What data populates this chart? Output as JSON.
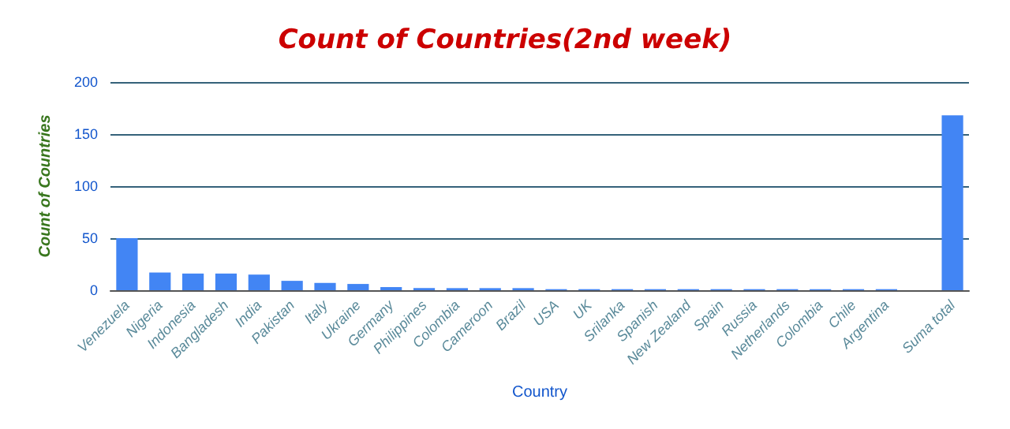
{
  "chart_data": {
    "type": "bar",
    "title": "Count of Countries(2nd week)",
    "xlabel": "Country",
    "ylabel": "Count of Countries",
    "categories": [
      "Venezuela",
      "Nigeria",
      "Indonesia",
      "Bangladesh",
      "India",
      "Pakistan",
      "Italy",
      "Ukraine",
      "Germany",
      "Philippines",
      "Colombia",
      "Cameroon",
      "Brazil",
      "USA",
      "UK",
      "Srilanka",
      "Spanish",
      "New Zealand",
      "Spain",
      "Russia",
      "Netherlands",
      "Colombia",
      "Chile",
      "Argentina",
      null,
      "Suma total"
    ],
    "values": [
      50,
      17,
      16,
      16,
      15,
      9,
      7,
      6,
      3,
      2,
      2,
      2,
      2,
      1,
      1,
      1,
      1,
      1,
      1,
      1,
      1,
      1,
      1,
      1,
      null,
      168
    ],
    "color": "#4285f4",
    "ylim": [
      0,
      200
    ],
    "yticks": [
      0,
      50,
      100,
      150,
      200
    ],
    "grid": "y"
  }
}
